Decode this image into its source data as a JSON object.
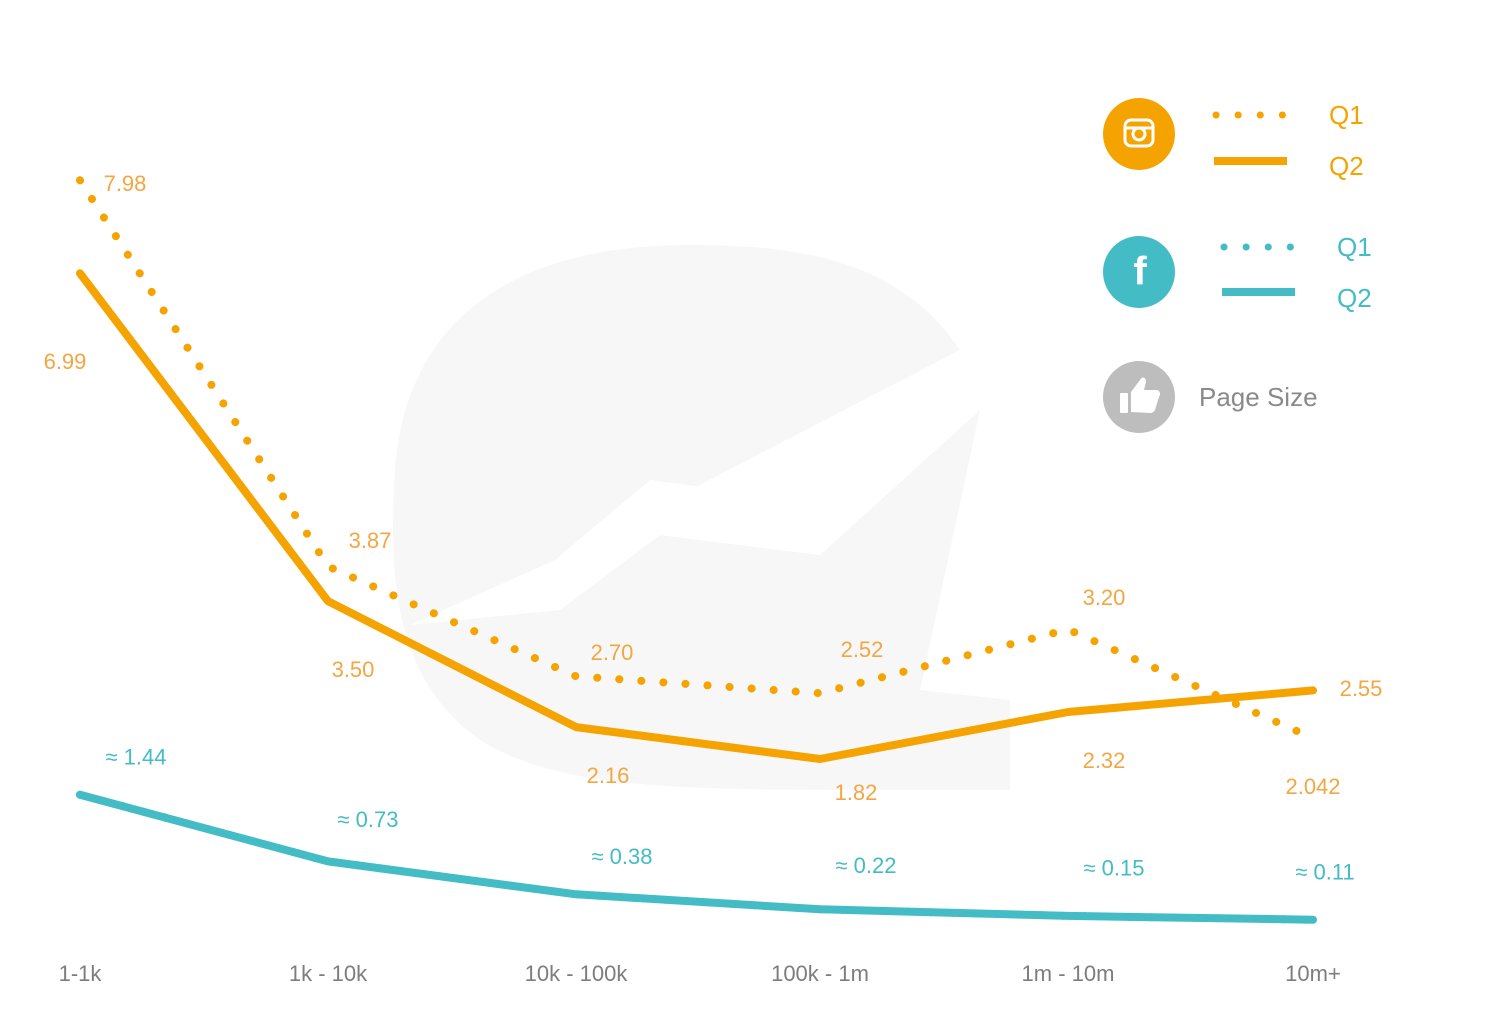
{
  "colors": {
    "instagram": "#f5a300",
    "instagram_label": "#f3a641",
    "facebook": "#43bcc5",
    "page_size": "#bdbdbd",
    "tick": "#7d7d7d",
    "watermark": "#f7f7f7"
  },
  "legend": {
    "instagram": {
      "icon": "instagram-icon",
      "q1": "Q1",
      "q2": "Q2"
    },
    "facebook": {
      "icon": "facebook-icon",
      "glyph": "f",
      "q1": "Q1",
      "q2": "Q2"
    },
    "page_size": {
      "icon": "thumbs-up-icon",
      "label": "Page Size"
    }
  },
  "chart_data": {
    "type": "line",
    "categories": [
      "1-1k",
      "1k - 10k",
      "10k - 100k",
      "100k - 1m",
      "1m - 10m",
      "10m+"
    ],
    "ylim": [
      0,
      8.5
    ],
    "grid": false,
    "legend_position": "top-right",
    "series": [
      {
        "platform": "instagram",
        "quarter": "Q1",
        "style": "dotted",
        "values": [
          7.98,
          3.87,
          2.7,
          2.52,
          3.2,
          2.042
        ],
        "labels": [
          "7.98",
          "3.87",
          "2.70",
          "2.52",
          "3.20",
          "2.042"
        ]
      },
      {
        "platform": "instagram",
        "quarter": "Q2",
        "style": "solid",
        "values": [
          6.99,
          3.5,
          2.16,
          1.82,
          2.32,
          2.55
        ],
        "labels": [
          "6.99",
          "3.50",
          "2.16",
          "1.82",
          "2.32",
          "2.55"
        ]
      },
      {
        "platform": "facebook",
        "quarter": "Q1",
        "style": "dotted",
        "values": [
          1.44,
          0.73,
          0.38,
          0.22,
          0.15,
          0.11
        ],
        "labels": []
      },
      {
        "platform": "facebook",
        "quarter": "Q2",
        "style": "solid",
        "values": [
          1.44,
          0.73,
          0.38,
          0.22,
          0.15,
          0.11
        ],
        "labels": [
          "≈ 1.44",
          "≈ 0.73",
          "≈ 0.38",
          "≈ 0.22",
          "≈ 0.15",
          "≈ 0.11"
        ]
      }
    ]
  }
}
